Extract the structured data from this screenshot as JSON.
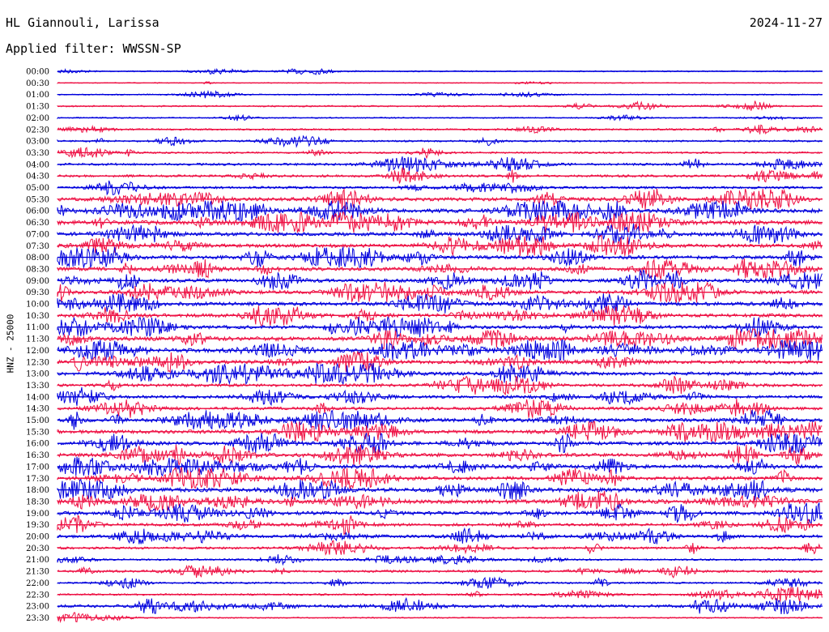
{
  "header": {
    "station": "HL Giannouli, Larissa",
    "date": "2024-11-27",
    "filter": "Applied filter: WWSSN-SP"
  },
  "chart_data": {
    "type": "line",
    "title": "",
    "ylabel": "HNZ - 25000",
    "xlabel": "",
    "grid": false,
    "legend": "none",
    "colors": [
      "#0000dd",
      "#ee1144"
    ],
    "rows": [
      {
        "label": "00:00",
        "color": "#0000dd",
        "amp": 2
      },
      {
        "label": "00:30",
        "color": "#ee1144",
        "amp": 1.5
      },
      {
        "label": "01:00",
        "color": "#0000dd",
        "amp": 2
      },
      {
        "label": "01:30",
        "color": "#ee1144",
        "amp": 2.5
      },
      {
        "label": "02:00",
        "color": "#0000dd",
        "amp": 2
      },
      {
        "label": "02:30",
        "color": "#ee1144",
        "amp": 3
      },
      {
        "label": "03:00",
        "color": "#0000dd",
        "amp": 3
      },
      {
        "label": "03:30",
        "color": "#ee1144",
        "amp": 3
      },
      {
        "label": "04:00",
        "color": "#0000dd",
        "amp": 4
      },
      {
        "label": "04:30",
        "color": "#ee1144",
        "amp": 4
      },
      {
        "label": "05:00",
        "color": "#0000dd",
        "amp": 4
      },
      {
        "label": "05:30",
        "color": "#ee1144",
        "amp": 6
      },
      {
        "label": "06:00",
        "color": "#0000dd",
        "amp": 7
      },
      {
        "label": "06:30",
        "color": "#ee1144",
        "amp": 7
      },
      {
        "label": "07:00",
        "color": "#0000dd",
        "amp": 6
      },
      {
        "label": "07:30",
        "color": "#ee1144",
        "amp": 6
      },
      {
        "label": "08:00",
        "color": "#0000dd",
        "amp": 6
      },
      {
        "label": "08:30",
        "color": "#ee1144",
        "amp": 6
      },
      {
        "label": "09:00",
        "color": "#0000dd",
        "amp": 6
      },
      {
        "label": "09:30",
        "color": "#ee1144",
        "amp": 6
      },
      {
        "label": "10:00",
        "color": "#0000dd",
        "amp": 6
      },
      {
        "label": "10:30",
        "color": "#ee1144",
        "amp": 6
      },
      {
        "label": "11:00",
        "color": "#0000dd",
        "amp": 6
      },
      {
        "label": "11:30",
        "color": "#ee1144",
        "amp": 7
      },
      {
        "label": "12:00",
        "color": "#0000dd",
        "amp": 7
      },
      {
        "label": "12:30",
        "color": "#ee1144",
        "amp": 6
      },
      {
        "label": "13:00",
        "color": "#0000dd",
        "amp": 6
      },
      {
        "label": "13:30",
        "color": "#ee1144",
        "amp": 5
      },
      {
        "label": "14:00",
        "color": "#0000dd",
        "amp": 5
      },
      {
        "label": "14:30",
        "color": "#ee1144",
        "amp": 5
      },
      {
        "label": "15:00",
        "color": "#0000dd",
        "amp": 6
      },
      {
        "label": "15:30",
        "color": "#ee1144",
        "amp": 6
      },
      {
        "label": "16:00",
        "color": "#0000dd",
        "amp": 6
      },
      {
        "label": "16:30",
        "color": "#ee1144",
        "amp": 6
      },
      {
        "label": "17:00",
        "color": "#0000dd",
        "amp": 6
      },
      {
        "label": "17:30",
        "color": "#ee1144",
        "amp": 6
      },
      {
        "label": "18:00",
        "color": "#0000dd",
        "amp": 7
      },
      {
        "label": "18:30",
        "color": "#ee1144",
        "amp": 7
      },
      {
        "label": "19:00",
        "color": "#0000dd",
        "amp": 6
      },
      {
        "label": "19:30",
        "color": "#ee1144",
        "amp": 5
      },
      {
        "label": "20:00",
        "color": "#0000dd",
        "amp": 5
      },
      {
        "label": "20:30",
        "color": "#ee1144",
        "amp": 4
      },
      {
        "label": "21:00",
        "color": "#0000dd",
        "amp": 3
      },
      {
        "label": "21:30",
        "color": "#ee1144",
        "amp": 4
      },
      {
        "label": "22:00",
        "color": "#0000dd",
        "amp": 3
      },
      {
        "label": "22:30",
        "color": "#ee1144",
        "amp": 3
      },
      {
        "label": "23:00",
        "color": "#0000dd",
        "amp": 5
      },
      {
        "label": "23:30",
        "color": "#ee1144",
        "amp": 2
      }
    ]
  }
}
